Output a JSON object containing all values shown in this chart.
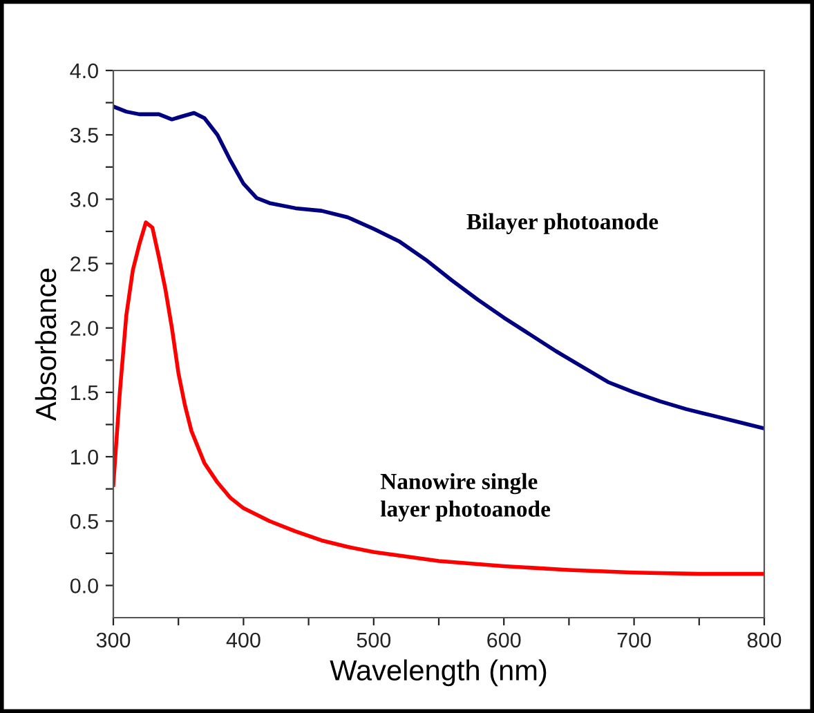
{
  "chart_data": {
    "type": "line",
    "xlabel": "Wavelength (nm)",
    "ylabel": "Absorbance",
    "xlim": [
      300,
      800
    ],
    "ylim": [
      -0.25,
      4.0
    ],
    "xticks": [
      300,
      {
        "value": 350,
        "label": null
      },
      400,
      {
        "value": 450,
        "label": null
      },
      500,
      {
        "value": 550,
        "label": null
      },
      600,
      {
        "value": 650,
        "label": null
      },
      700,
      {
        "value": 750,
        "label": null
      },
      800
    ],
    "yticks": [
      {
        "value": 0,
        "label": "0.0"
      },
      {
        "value": 0.25,
        "label": null
      },
      0.5,
      {
        "value": 0.75,
        "label": null
      },
      {
        "value": 1,
        "label": "1.0"
      },
      {
        "value": 1.25,
        "label": null
      },
      1.5,
      {
        "value": 1.75,
        "label": null
      },
      {
        "value": 2,
        "label": "2.0"
      },
      {
        "value": 2.25,
        "label": null
      },
      2.5,
      {
        "value": 2.75,
        "label": null
      },
      {
        "value": 3,
        "label": "3.0"
      },
      {
        "value": 3.25,
        "label": null
      },
      3.5,
      {
        "value": 3.75,
        "label": null
      },
      {
        "value": 4,
        "label": "4.0"
      }
    ],
    "grid": false,
    "legend": false,
    "marker": "none",
    "line_style": "solid",
    "series": [
      {
        "color": "#000080",
        "x": [
          300,
          310,
          320,
          335,
          345,
          355,
          362,
          370,
          380,
          390,
          400,
          410,
          420,
          440,
          460,
          480,
          500,
          520,
          540,
          560,
          580,
          600,
          620,
          640,
          660,
          680,
          700,
          720,
          740,
          760,
          780,
          800
        ],
        "values": [
          3.72,
          3.68,
          3.66,
          3.66,
          3.62,
          3.65,
          3.67,
          3.63,
          3.5,
          3.3,
          3.12,
          3.01,
          2.97,
          2.93,
          2.91,
          2.86,
          2.77,
          2.67,
          2.53,
          2.37,
          2.22,
          2.08,
          1.95,
          1.82,
          1.7,
          1.58,
          1.5,
          1.43,
          1.37,
          1.32,
          1.27,
          1.22
        ]
      },
      {
        "color": "#ff0000",
        "x": [
          300,
          305,
          310,
          315,
          320,
          325,
          330,
          335,
          340,
          345,
          350,
          355,
          360,
          370,
          380,
          390,
          400,
          420,
          440,
          460,
          480,
          500,
          550,
          600,
          650,
          700,
          750,
          800
        ],
        "values": [
          0.78,
          1.5,
          2.1,
          2.45,
          2.65,
          2.82,
          2.78,
          2.55,
          2.3,
          2.0,
          1.65,
          1.4,
          1.2,
          0.95,
          0.8,
          0.68,
          0.6,
          0.5,
          0.42,
          0.35,
          0.3,
          0.26,
          0.19,
          0.15,
          0.12,
          0.1,
          0.09,
          0.09
        ]
      }
    ],
    "annotations": [
      "Bilayer photoanode",
      "Nanowire single\nlayer photoanode"
    ]
  }
}
